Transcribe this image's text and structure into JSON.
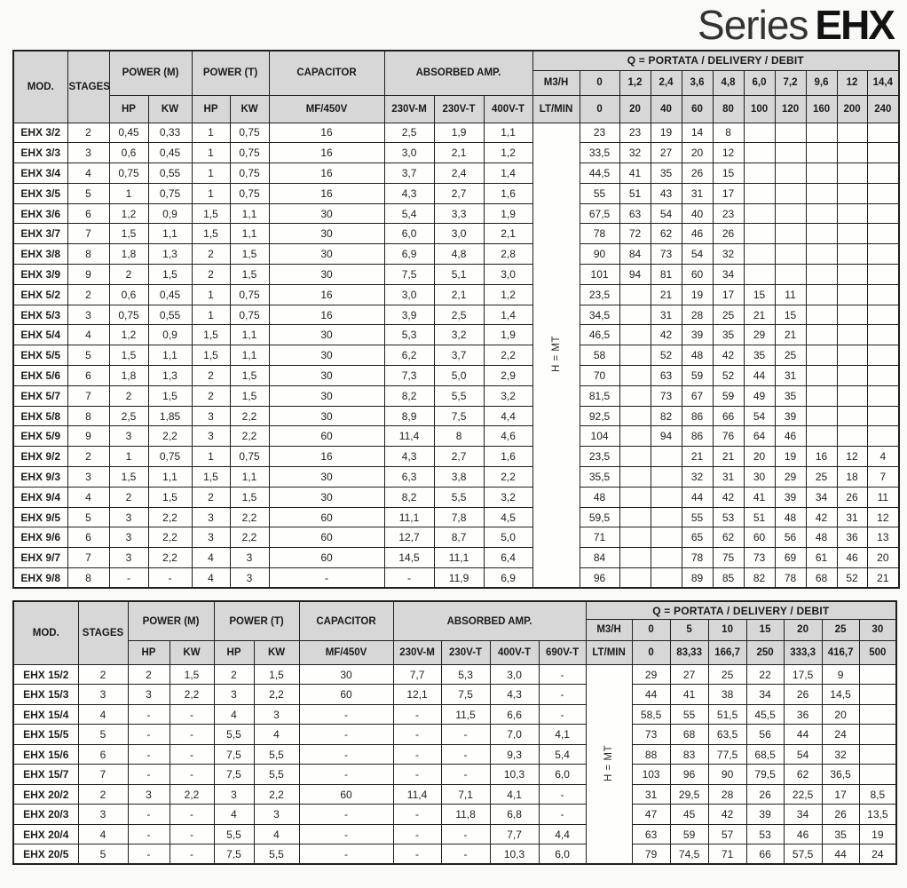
{
  "title": {
    "series": "Series",
    "model": "EHX"
  },
  "colors": {
    "page_bg": "#f9f9f7",
    "header_bg": "#d7d7d7",
    "border": "#1f1f1f",
    "text": "#141414"
  },
  "labels": {
    "h_eq_mt": "H = MT"
  },
  "table1": {
    "headers": {
      "mod": "MOD.",
      "stages": "STAGES",
      "power_m": "POWER (M)",
      "power_t": "POWER (T)",
      "capacitor": "CAPACITOR",
      "absorbed": "ABSORBED AMP.",
      "q_title": "Q = PORTATA / DELIVERY / DEBIT",
      "hp": "HP",
      "kw": "KW",
      "mf": "MF/450V",
      "amp_cols": [
        "230V-M",
        "230V-T",
        "400V-T"
      ],
      "m3h_label": "M3/H",
      "ltmin_label": "LT/MIN",
      "m3h_values": [
        "0",
        "1,2",
        "2,4",
        "3,6",
        "4,8",
        "6,0",
        "7,2",
        "9,6",
        "12",
        "14,4"
      ],
      "ltmin_values": [
        "0",
        "20",
        "40",
        "60",
        "80",
        "100",
        "120",
        "160",
        "200",
        "240"
      ]
    },
    "rows": [
      [
        "EHX 3/2",
        "2",
        "0,45",
        "0,33",
        "1",
        "0,75",
        "16",
        "2,5",
        "1,9",
        "1,1",
        "23",
        "23",
        "19",
        "14",
        "8",
        "",
        "",
        "",
        "",
        ""
      ],
      [
        "EHX 3/3",
        "3",
        "0,6",
        "0,45",
        "1",
        "0,75",
        "16",
        "3,0",
        "2,1",
        "1,2",
        "33,5",
        "32",
        "27",
        "20",
        "12",
        "",
        "",
        "",
        "",
        ""
      ],
      [
        "EHX 3/4",
        "4",
        "0,75",
        "0,55",
        "1",
        "0,75",
        "16",
        "3,7",
        "2,4",
        "1,4",
        "44,5",
        "41",
        "35",
        "26",
        "15",
        "",
        "",
        "",
        "",
        ""
      ],
      [
        "EHX 3/5",
        "5",
        "1",
        "0,75",
        "1",
        "0,75",
        "16",
        "4,3",
        "2,7",
        "1,6",
        "55",
        "51",
        "43",
        "31",
        "17",
        "",
        "",
        "",
        "",
        ""
      ],
      [
        "EHX 3/6",
        "6",
        "1,2",
        "0,9",
        "1,5",
        "1,1",
        "30",
        "5,4",
        "3,3",
        "1,9",
        "67,5",
        "63",
        "54",
        "40",
        "23",
        "",
        "",
        "",
        "",
        ""
      ],
      [
        "EHX 3/7",
        "7",
        "1,5",
        "1,1",
        "1,5",
        "1,1",
        "30",
        "6,0",
        "3,0",
        "2,1",
        "78",
        "72",
        "62",
        "46",
        "26",
        "",
        "",
        "",
        "",
        ""
      ],
      [
        "EHX 3/8",
        "8",
        "1,8",
        "1,3",
        "2",
        "1,5",
        "30",
        "6,9",
        "4,8",
        "2,8",
        "90",
        "84",
        "73",
        "54",
        "32",
        "",
        "",
        "",
        "",
        ""
      ],
      [
        "EHX 3/9",
        "9",
        "2",
        "1,5",
        "2",
        "1,5",
        "30",
        "7,5",
        "5,1",
        "3,0",
        "101",
        "94",
        "81",
        "60",
        "34",
        "",
        "",
        "",
        "",
        ""
      ],
      [
        "EHX 5/2",
        "2",
        "0,6",
        "0,45",
        "1",
        "0,75",
        "16",
        "3,0",
        "2,1",
        "1,2",
        "23,5",
        "",
        "21",
        "19",
        "17",
        "15",
        "11",
        "",
        "",
        ""
      ],
      [
        "EHX 5/3",
        "3",
        "0,75",
        "0,55",
        "1",
        "0,75",
        "16",
        "3,9",
        "2,5",
        "1,4",
        "34,5",
        "",
        "31",
        "28",
        "25",
        "21",
        "15",
        "",
        "",
        ""
      ],
      [
        "EHX 5/4",
        "4",
        "1,2",
        "0,9",
        "1,5",
        "1,1",
        "30",
        "5,3",
        "3,2",
        "1,9",
        "46,5",
        "",
        "42",
        "39",
        "35",
        "29",
        "21",
        "",
        "",
        ""
      ],
      [
        "EHX 5/5",
        "5",
        "1,5",
        "1,1",
        "1,5",
        "1,1",
        "30",
        "6,2",
        "3,7",
        "2,2",
        "58",
        "",
        "52",
        "48",
        "42",
        "35",
        "25",
        "",
        "",
        ""
      ],
      [
        "EHX 5/6",
        "6",
        "1,8",
        "1,3",
        "2",
        "1,5",
        "30",
        "7,3",
        "5,0",
        "2,9",
        "70",
        "",
        "63",
        "59",
        "52",
        "44",
        "31",
        "",
        "",
        ""
      ],
      [
        "EHX 5/7",
        "7",
        "2",
        "1,5",
        "2",
        "1,5",
        "30",
        "8,2",
        "5,5",
        "3,2",
        "81,5",
        "",
        "73",
        "67",
        "59",
        "49",
        "35",
        "",
        "",
        ""
      ],
      [
        "EHX 5/8",
        "8",
        "2,5",
        "1,85",
        "3",
        "2,2",
        "30",
        "8,9",
        "7,5",
        "4,4",
        "92,5",
        "",
        "82",
        "86",
        "66",
        "54",
        "39",
        "",
        "",
        ""
      ],
      [
        "EHX 5/9",
        "9",
        "3",
        "2,2",
        "3",
        "2,2",
        "60",
        "11,4",
        "8",
        "4,6",
        "104",
        "",
        "94",
        "86",
        "76",
        "64",
        "46",
        "",
        "",
        ""
      ],
      [
        "EHX 9/2",
        "2",
        "1",
        "0,75",
        "1",
        "0,75",
        "16",
        "4,3",
        "2,7",
        "1,6",
        "23,5",
        "",
        "",
        "21",
        "21",
        "20",
        "19",
        "16",
        "12",
        "4"
      ],
      [
        "EHX 9/3",
        "3",
        "1,5",
        "1,1",
        "1,5",
        "1,1",
        "30",
        "6,3",
        "3,8",
        "2,2",
        "35,5",
        "",
        "",
        "32",
        "31",
        "30",
        "29",
        "25",
        "18",
        "7"
      ],
      [
        "EHX 9/4",
        "4",
        "2",
        "1,5",
        "2",
        "1,5",
        "30",
        "8,2",
        "5,5",
        "3,2",
        "48",
        "",
        "",
        "44",
        "42",
        "41",
        "39",
        "34",
        "26",
        "11"
      ],
      [
        "EHX 9/5",
        "5",
        "3",
        "2,2",
        "3",
        "2,2",
        "60",
        "11,1",
        "7,8",
        "4,5",
        "59,5",
        "",
        "",
        "55",
        "53",
        "51",
        "48",
        "42",
        "31",
        "12"
      ],
      [
        "EHX 9/6",
        "6",
        "3",
        "2,2",
        "3",
        "2,2",
        "60",
        "12,7",
        "8,7",
        "5,0",
        "71",
        "",
        "",
        "65",
        "62",
        "60",
        "56",
        "48",
        "36",
        "13"
      ],
      [
        "EHX 9/7",
        "7",
        "3",
        "2,2",
        "4",
        "3",
        "60",
        "14,5",
        "11,1",
        "6,4",
        "84",
        "",
        "",
        "78",
        "75",
        "73",
        "69",
        "61",
        "46",
        "20"
      ],
      [
        "EHX 9/8",
        "8",
        "-",
        "-",
        "4",
        "3",
        "-",
        "-",
        "11,9",
        "6,9",
        "96",
        "",
        "",
        "89",
        "85",
        "82",
        "78",
        "68",
        "52",
        "21"
      ]
    ]
  },
  "table2": {
    "headers": {
      "mod": "MOD.",
      "stages": "STAGES",
      "power_m": "POWER (M)",
      "power_t": "POWER (T)",
      "capacitor": "CAPACITOR",
      "absorbed": "ABSORBED AMP.",
      "q_title": "Q = PORTATA / DELIVERY / DEBIT",
      "hp": "HP",
      "kw": "KW",
      "mf": "MF/450V",
      "amp_cols": [
        "230V-M",
        "230V-T",
        "400V-T",
        "690V-T"
      ],
      "m3h_label": "M3/H",
      "ltmin_label": "LT/MIN",
      "m3h_values": [
        "0",
        "5",
        "10",
        "15",
        "20",
        "25",
        "30"
      ],
      "ltmin_values": [
        "0",
        "83,33",
        "166,7",
        "250",
        "333,3",
        "416,7",
        "500"
      ]
    },
    "rows": [
      [
        "EHX 15/2",
        "2",
        "2",
        "1,5",
        "2",
        "1,5",
        "30",
        "7,7",
        "5,3",
        "3,0",
        "-",
        "29",
        "27",
        "25",
        "22",
        "17,5",
        "9",
        ""
      ],
      [
        "EHX 15/3",
        "3",
        "3",
        "2,2",
        "3",
        "2,2",
        "60",
        "12,1",
        "7,5",
        "4,3",
        "-",
        "44",
        "41",
        "38",
        "34",
        "26",
        "14,5",
        ""
      ],
      [
        "EHX 15/4",
        "4",
        "-",
        "-",
        "4",
        "3",
        "-",
        "-",
        "11,5",
        "6,6",
        "-",
        "58,5",
        "55",
        "51,5",
        "45,5",
        "36",
        "20",
        ""
      ],
      [
        "EHX 15/5",
        "5",
        "-",
        "-",
        "5,5",
        "4",
        "-",
        "-",
        "-",
        "7,0",
        "4,1",
        "73",
        "68",
        "63,5",
        "56",
        "44",
        "24",
        ""
      ],
      [
        "EHX 15/6",
        "6",
        "-",
        "-",
        "7,5",
        "5,5",
        "-",
        "-",
        "-",
        "9,3",
        "5,4",
        "88",
        "83",
        "77,5",
        "68,5",
        "54",
        "32",
        ""
      ],
      [
        "EHX 15/7",
        "7",
        "-",
        "-",
        "7,5",
        "5,5",
        "-",
        "-",
        "-",
        "10,3",
        "6,0",
        "103",
        "96",
        "90",
        "79,5",
        "62",
        "36,5",
        ""
      ],
      [
        "EHX 20/2",
        "2",
        "3",
        "2,2",
        "3",
        "2,2",
        "60",
        "11,4",
        "7,1",
        "4,1",
        "-",
        "31",
        "29,5",
        "28",
        "26",
        "22,5",
        "17",
        "8,5"
      ],
      [
        "EHX 20/3",
        "3",
        "-",
        "-",
        "4",
        "3",
        "-",
        "-",
        "11,8",
        "6,8",
        "-",
        "47",
        "45",
        "42",
        "39",
        "34",
        "26",
        "13,5"
      ],
      [
        "EHX 20/4",
        "4",
        "-",
        "-",
        "5,5",
        "4",
        "-",
        "-",
        "-",
        "7,7",
        "4,4",
        "63",
        "59",
        "57",
        "53",
        "46",
        "35",
        "19"
      ],
      [
        "EHX 20/5",
        "5",
        "-",
        "-",
        "7,5",
        "5,5",
        "-",
        "-",
        "-",
        "10,3",
        "6,0",
        "79",
        "74,5",
        "71",
        "66",
        "57,5",
        "44",
        "24"
      ]
    ]
  }
}
